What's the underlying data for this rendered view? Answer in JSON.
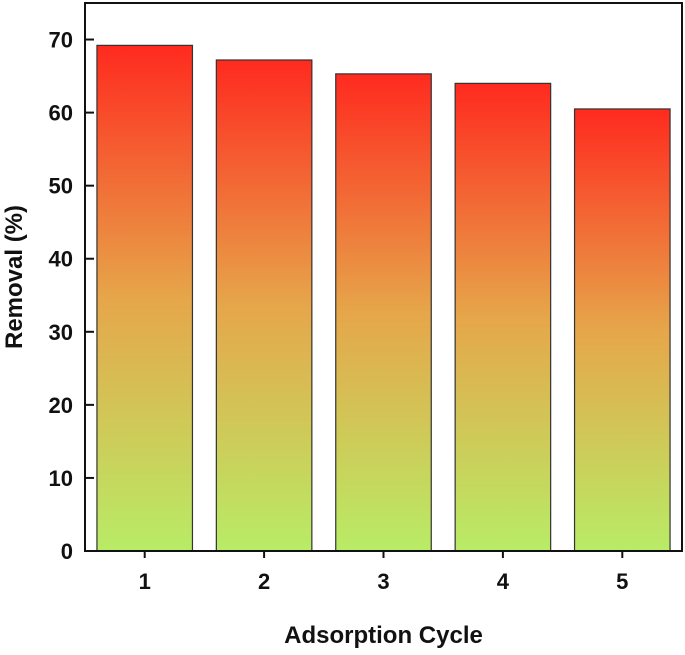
{
  "chart_data": {
    "type": "bar",
    "title": "",
    "xlabel": "Adsorption Cycle",
    "ylabel": "Removal (%)",
    "categories": [
      "1",
      "2",
      "3",
      "4",
      "5"
    ],
    "values": [
      69.2,
      67.2,
      65.3,
      64.0,
      60.5
    ],
    "ylim": [
      0,
      75
    ],
    "yticks": [
      0,
      10,
      20,
      30,
      40,
      50,
      60,
      70
    ],
    "ytick_labels": [
      "0",
      "10",
      "20",
      "30",
      "40",
      "50",
      "60",
      "70"
    ],
    "grid": false,
    "bar_gradient": {
      "top": "#ff2a1f",
      "middle": "#e6a64a",
      "bottom": "#b8ec66"
    },
    "bar_edge_color": "#333333"
  }
}
